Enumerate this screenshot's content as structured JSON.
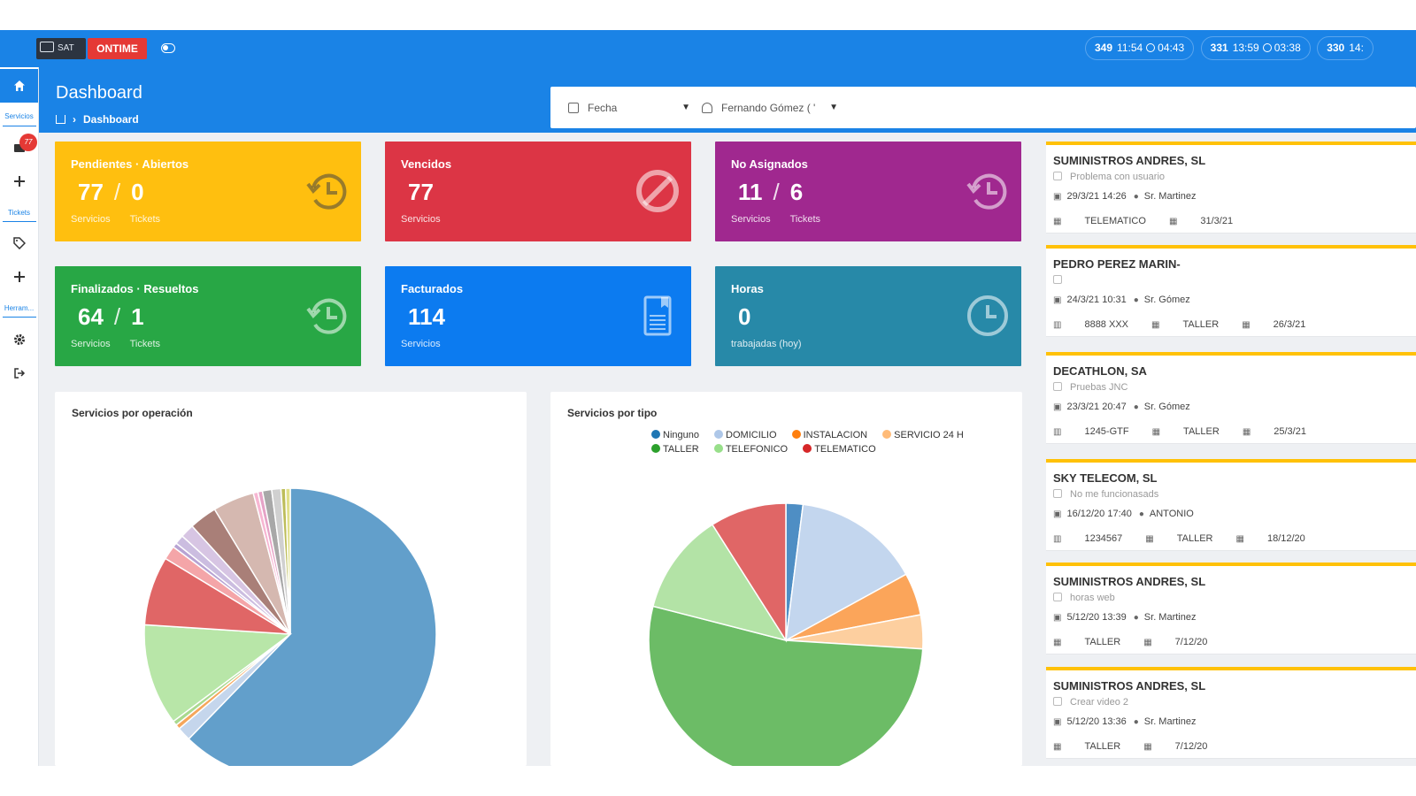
{
  "topbar": {
    "logo_text": "SAT",
    "ontime_label": "ONTIME",
    "counters": [
      {
        "number": "349",
        "time": "11:54",
        "duration": "04:43"
      },
      {
        "number": "331",
        "time": "13:59",
        "duration": "03:38"
      },
      {
        "number": "330",
        "time": "14:",
        "duration": ""
      }
    ]
  },
  "sidebar": {
    "home_label": "Servicios",
    "tickets_label": "Tickets",
    "tools_label": "Herram...",
    "notification_count": "77"
  },
  "header": {
    "title": "Dashboard",
    "breadcrumb_current": "Dashboard"
  },
  "filters": {
    "date_value": "Fecha",
    "user_value": "Fernando Gómez ( '"
  },
  "cards": {
    "pendientes": {
      "title": "Pendientes · Abiertos",
      "value_a": "77",
      "value_b": "0",
      "label_a": "Servicios",
      "label_b": "Tickets",
      "color": "#ffbf0f"
    },
    "vencidos": {
      "title": "Vencidos",
      "value_a": "77",
      "label_a": "Servicios",
      "color": "#dc3545"
    },
    "no_asignados": {
      "title": "No Asignados",
      "value_a": "11",
      "value_b": "6",
      "label_a": "Servicios",
      "label_b": "Tickets",
      "color": "#a0288f"
    },
    "finalizados": {
      "title": "Finalizados · Resueltos",
      "value_a": "64",
      "value_b": "1",
      "label_a": "Servicios",
      "label_b": "Tickets",
      "color": "#28a745"
    },
    "facturados": {
      "title": "Facturados",
      "value_a": "114",
      "label_a": "Servicios",
      "color": "#0c7bf0"
    },
    "horas": {
      "title": "Horas",
      "value_a": "0",
      "label_a": "trabajadas (hoy)",
      "color": "#2789a8"
    }
  },
  "charts": {
    "operacion_title": "Servicios por operación",
    "tipo_title": "Servicios por tipo",
    "tipo_legend": [
      {
        "name": "Ninguno",
        "color": "#1f77b4"
      },
      {
        "name": "DOMICILIO",
        "color": "#aec7e8"
      },
      {
        "name": "INSTALACION",
        "color": "#ff7f0e"
      },
      {
        "name": "SERVICIO 24 H",
        "color": "#ffbb78"
      },
      {
        "name": "TALLER",
        "color": "#2ca02c"
      },
      {
        "name": "TELEFONICO",
        "color": "#98df8a"
      },
      {
        "name": "TELEMATICO",
        "color": "#d62728"
      }
    ]
  },
  "chart_data": [
    {
      "type": "pie",
      "title": "Servicios por operación",
      "values": [
        61,
        1.5,
        0.5,
        0.5,
        11,
        7.5,
        1.5,
        0.5,
        1,
        1.5,
        3,
        4.5,
        0.5,
        0.5,
        1,
        1,
        0.5,
        0.5
      ],
      "colors": [
        "#629fcb",
        "#c5d6ec",
        "#f5a65b",
        "#a9d98f",
        "#b8e6a8",
        "#e06666",
        "#f4a5a8",
        "#b7a3d3",
        "#cbbde0",
        "#d7c5e3",
        "#a97f78",
        "#d5b8b0",
        "#f7b6d2",
        "#e6a3c7",
        "#a8a8a8",
        "#d0d0d0",
        "#bdbd5a",
        "#e0e08a"
      ]
    },
    {
      "type": "pie",
      "title": "Servicios por tipo",
      "series": [
        {
          "name": "Ninguno",
          "value": 2
        },
        {
          "name": "DOMICILIO",
          "value": 15
        },
        {
          "name": "INSTALACION",
          "value": 5
        },
        {
          "name": "SERVICIO 24 H",
          "value": 4
        },
        {
          "name": "TALLER",
          "value": 53
        },
        {
          "name": "TELEFONICO",
          "value": 12
        },
        {
          "name": "TELEMATICO",
          "value": 9
        }
      ],
      "colors": [
        "#4e8ec4",
        "#c3d6ee",
        "#fba55a",
        "#fdcf9f",
        "#6cbc66",
        "#b3e3a6",
        "#e06666"
      ]
    }
  ],
  "tickets": [
    {
      "client": "SUMINISTROS ANDRES, SL",
      "desc": "Problema con usuario",
      "datetime": "29/3/21 14:26",
      "tech": "Sr. Martinez",
      "foot": [
        "TELEMATICO",
        "31/3/21"
      ]
    },
    {
      "client": "PEDRO PEREZ MARIN-",
      "desc": "",
      "datetime": "24/3/21 10:31",
      "tech": "Sr. Gómez",
      "foot": [
        "8888 XXX",
        "TALLER",
        "26/3/21"
      ]
    },
    {
      "client": "DECATHLON, SA",
      "desc": "Pruebas JNC",
      "datetime": "23/3/21 20:47",
      "tech": "Sr. Gómez",
      "foot": [
        "1245-GTF",
        "TALLER",
        "25/3/21"
      ]
    },
    {
      "client": "SKY TELECOM, SL",
      "desc": "No me funcionasads",
      "datetime": "16/12/20 17:40",
      "tech": "ANTONIO",
      "foot": [
        "1234567",
        "TALLER",
        "18/12/20"
      ]
    },
    {
      "client": "SUMINISTROS ANDRES, SL",
      "desc": "horas web",
      "datetime": "5/12/20 13:39",
      "tech": "Sr. Martinez",
      "foot": [
        "TALLER",
        "7/12/20"
      ]
    },
    {
      "client": "SUMINISTROS ANDRES, SL",
      "desc": "Crear video 2",
      "datetime": "5/12/20 13:36",
      "tech": "Sr. Martinez",
      "foot": [
        "TALLER",
        "7/12/20"
      ]
    }
  ]
}
